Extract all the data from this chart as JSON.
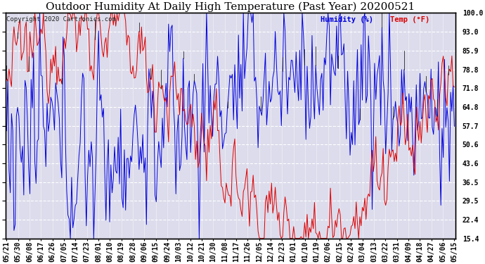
{
  "title": "Outdoor Humidity At Daily High Temperature (Past Year) 20200521",
  "copyright": "Copyright 2020 Cartronics.com",
  "legend_humidity": "Humidity (%)",
  "legend_temp": "Temp (°F)",
  "ylabel_right_ticks": [
    100.0,
    93.0,
    85.9,
    78.8,
    71.8,
    64.8,
    57.7,
    50.6,
    43.6,
    36.5,
    29.5,
    22.4,
    15.4
  ],
  "ylim": [
    15.4,
    100.0
  ],
  "background_color": "#ffffff",
  "plot_bg_color": "#dcdcec",
  "grid_color": "#ffffff",
  "humidity_color": "#0000dd",
  "temp_color": "#dd0000",
  "black_color": "#000000",
  "title_fontsize": 11,
  "tick_fontsize": 7,
  "x_labels": [
    "05/21",
    "05/30",
    "06/08",
    "06/17",
    "06/26",
    "07/05",
    "07/14",
    "07/23",
    "08/01",
    "08/10",
    "08/19",
    "08/28",
    "09/06",
    "09/15",
    "09/24",
    "10/03",
    "10/12",
    "10/21",
    "10/30",
    "11/08",
    "11/17",
    "11/26",
    "12/05",
    "12/14",
    "12/23",
    "01/01",
    "01/10",
    "01/19",
    "02/06",
    "02/15",
    "02/24",
    "03/04",
    "03/13",
    "03/22",
    "03/31",
    "04/09",
    "04/18",
    "04/27",
    "05/06",
    "05/15"
  ],
  "num_points": 366
}
